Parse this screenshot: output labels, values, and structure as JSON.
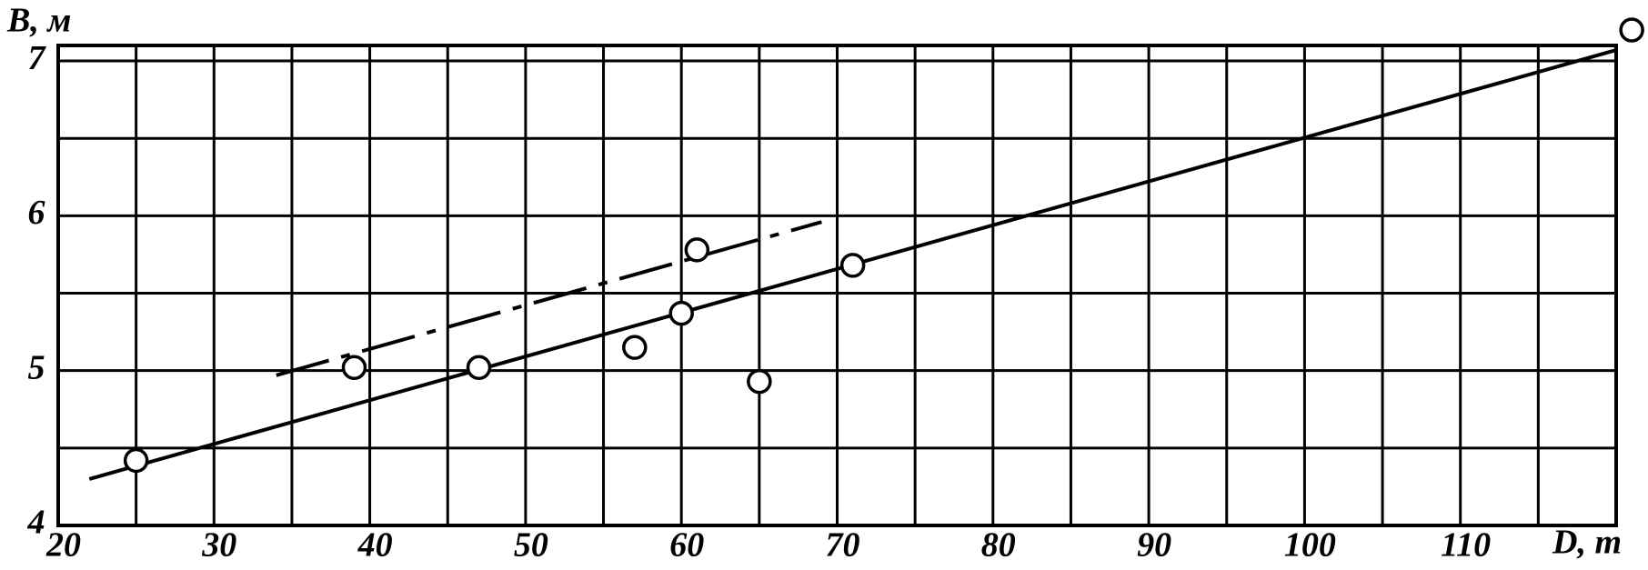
{
  "chart_data": {
    "type": "scatter",
    "xlabel": "D, т",
    "ylabel": "B, м",
    "xlim": [
      20,
      120
    ],
    "ylim": [
      4,
      7.1
    ],
    "xticks": [
      20,
      30,
      40,
      50,
      60,
      70,
      80,
      90,
      100,
      110
    ],
    "yticks": [
      4,
      5,
      6,
      7
    ],
    "xgrid": [
      20,
      25,
      30,
      35,
      40,
      45,
      50,
      55,
      60,
      65,
      70,
      75,
      80,
      85,
      90,
      95,
      100,
      105,
      110,
      115,
      120
    ],
    "ygrid": [
      4,
      4.5,
      5,
      5.5,
      6,
      6.5,
      7
    ],
    "color": "#000000",
    "points": {
      "x": [
        25,
        39,
        47,
        57,
        60,
        61,
        65,
        71,
        121
      ],
      "y": [
        4.42,
        5.02,
        5.02,
        5.15,
        5.37,
        5.78,
        4.93,
        5.68,
        7.2
      ]
    },
    "lines": [
      {
        "style": "solid",
        "x": [
          22,
          120
        ],
        "y": [
          4.3,
          7.07
        ]
      },
      {
        "style": "dash-dot",
        "x": [
          34,
          69
        ],
        "y": [
          4.97,
          5.96
        ]
      }
    ]
  }
}
